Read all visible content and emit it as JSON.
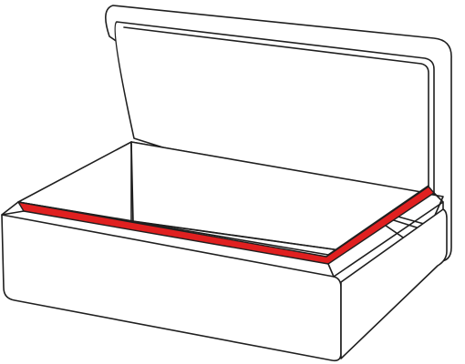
{
  "diagram": {
    "subject": "open-rectangular-box",
    "colors": {
      "outline": "#1f1f1f",
      "background": "#ffffff",
      "body": "#ffffff",
      "seal": "#e02020"
    }
  }
}
